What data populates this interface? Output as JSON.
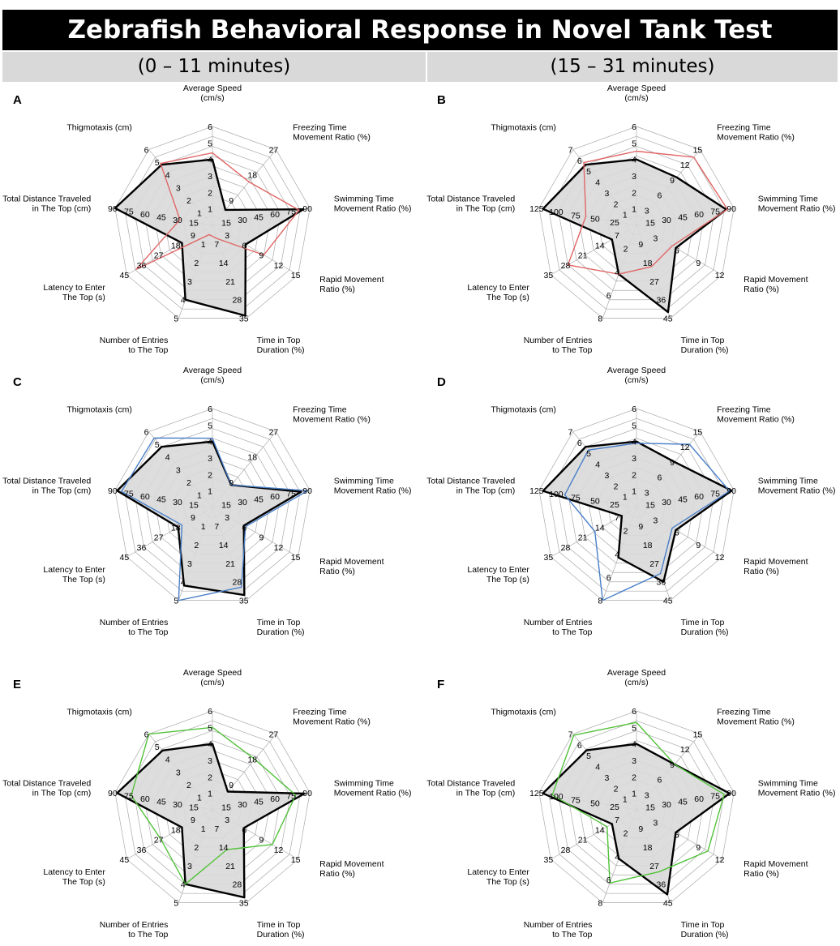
{
  "title": "Zebrafish Behavioral Response in Novel Tank Test",
  "columns": [
    "(0 – 11 minutes)",
    "(15 – 31 minutes)"
  ],
  "colors": {
    "reference": "#000000",
    "fill": "#d9d9d9",
    "panel_a": "#e06666",
    "panel_c": "#4a7fc8",
    "panel_e": "#52c23a",
    "grid": "#aaaaaa"
  },
  "axes": [
    {
      "label": "Average Speed\n(cm/s)"
    },
    {
      "label": "Freezing Time\nMovement Ratio (%)"
    },
    {
      "label": "Swimming Time\nMovement Ratio (%)"
    },
    {
      "label": "Rapid Movement\nRatio (%)"
    },
    {
      "label": "Time in Top\nDuration (%)"
    },
    {
      "label": "Number of Entries\nto The Top"
    },
    {
      "label": "Latency to Enter\nThe Top (s)"
    },
    {
      "label": "Total Distance Traveled\nin The Top (cm)"
    },
    {
      "label": "Thigmotaxis (cm)"
    }
  ],
  "chart_data": [
    {
      "type": "radar",
      "panel": "A",
      "column": 0,
      "axis_max": [
        6,
        27,
        90,
        15,
        35,
        5,
        45,
        90,
        6
      ],
      "ticks": [
        [
          "1",
          "2",
          "3",
          "4",
          "5",
          "6"
        ],
        [
          "9",
          "18",
          "27"
        ],
        [
          "15",
          "30",
          "45",
          "60",
          "75",
          "90"
        ],
        [
          "3",
          "6",
          "9",
          "12",
          "15"
        ],
        [
          "7",
          "14",
          "21",
          "28",
          "35"
        ],
        [
          "1",
          "2",
          "3",
          "4",
          "5"
        ],
        [
          "9",
          "18",
          "27",
          "36",
          "45"
        ],
        [
          "15",
          "30",
          "45",
          "60",
          "75",
          "90"
        ],
        [
          "1",
          "2",
          "3",
          "4",
          "5",
          "6"
        ]
      ],
      "series": [
        {
          "role": "reference",
          "values": [
            4,
            5.5,
            84,
            5.8,
            34,
            4,
            16,
            90,
            4.8
          ]
        },
        {
          "role": "panel_a",
          "values": [
            4.4,
            15.5,
            80,
            9,
            5,
            0.5,
            40,
            30,
            4.9
          ]
        }
      ]
    },
    {
      "type": "radar",
      "panel": "B",
      "column": 1,
      "axis_max": [
        6,
        15,
        90,
        12,
        45,
        8,
        35,
        125,
        7
      ],
      "ticks": [
        [
          "1",
          "2",
          "3",
          "4",
          "5",
          "6"
        ],
        [
          "3",
          "6",
          "9",
          "12",
          "15"
        ],
        [
          "15",
          "30",
          "45",
          "60",
          "75",
          "90"
        ],
        [
          "3",
          "6",
          "9",
          "12"
        ],
        [
          "9",
          "18",
          "27",
          "36",
          "45"
        ],
        [
          "2",
          "4",
          "6",
          "8"
        ],
        [
          "7",
          "14",
          "21",
          "28",
          "35"
        ],
        [
          "25",
          "50",
          "75",
          "100",
          "125"
        ],
        [
          "1",
          "2",
          "3",
          "4",
          "5",
          "6",
          "7"
        ]
      ],
      "series": [
        {
          "role": "reference",
          "values": [
            4,
            9.5,
            83,
            5.5,
            42,
            4.2,
            10,
            120,
            5.6
          ]
        },
        {
          "role": "panel_a",
          "values": [
            4.5,
            13.5,
            84,
            5,
            20,
            4.2,
            28,
            65,
            5.8
          ]
        }
      ]
    },
    {
      "type": "radar",
      "panel": "C",
      "column": 0,
      "axis_max": [
        6,
        27,
        90,
        15,
        35,
        5,
        45,
        90,
        6
      ],
      "ticks": [
        [
          "1",
          "2",
          "3",
          "4",
          "5",
          "6"
        ],
        [
          "9",
          "18",
          "27"
        ],
        [
          "15",
          "30",
          "45",
          "60",
          "75",
          "90"
        ],
        [
          "3",
          "6",
          "9",
          "12",
          "15"
        ],
        [
          "7",
          "14",
          "21",
          "28",
          "35"
        ],
        [
          "1",
          "2",
          "3",
          "4",
          "5"
        ],
        [
          "9",
          "18",
          "27",
          "36",
          "45"
        ],
        [
          "15",
          "30",
          "45",
          "60",
          "75",
          "90"
        ],
        [
          "1",
          "2",
          "3",
          "4",
          "5",
          "6"
        ]
      ],
      "series": [
        {
          "role": "reference",
          "values": [
            4,
            8,
            82,
            5.5,
            33,
            4.2,
            18,
            88,
            4.8
          ]
        },
        {
          "role": "panel_c",
          "values": [
            4.2,
            8,
            88,
            5.8,
            30,
            5,
            16,
            84,
            5.5
          ]
        }
      ]
    },
    {
      "type": "radar",
      "panel": "D",
      "column": 1,
      "axis_max": [
        6,
        15,
        90,
        12,
        45,
        8,
        35,
        125,
        7
      ],
      "ticks": [
        [
          "1",
          "2",
          "3",
          "4",
          "5",
          "6"
        ],
        [
          "3",
          "6",
          "9",
          "12",
          "15"
        ],
        [
          "15",
          "30",
          "45",
          "60",
          "75",
          "90"
        ],
        [
          "3",
          "6",
          "9",
          "12"
        ],
        [
          "9",
          "18",
          "27",
          "36",
          "45"
        ],
        [
          "2",
          "4",
          "6",
          "8"
        ],
        [
          "7",
          "14",
          "21",
          "28",
          "35"
        ],
        [
          "25",
          "50",
          "75",
          "100",
          "125"
        ],
        [
          "1",
          "2",
          "3",
          "4",
          "5",
          "6",
          "7"
        ]
      ],
      "series": [
        {
          "role": "reference",
          "values": [
            4,
            9,
            88,
            5.5,
            36,
            4.3,
            6,
            120,
            5.6
          ]
        },
        {
          "role": "panel_c",
          "values": [
            3.9,
            12.5,
            86,
            5,
            32,
            8,
            17,
            92,
            5.3
          ]
        }
      ]
    },
    {
      "type": "radar",
      "panel": "E",
      "column": 0,
      "axis_max": [
        6,
        27,
        90,
        15,
        35,
        5,
        45,
        90,
        6
      ],
      "ticks": [
        [
          "1",
          "2",
          "3",
          "4",
          "5",
          "6"
        ],
        [
          "9",
          "18",
          "27"
        ],
        [
          "15",
          "30",
          "45",
          "60",
          "75",
          "90"
        ],
        [
          "3",
          "6",
          "9",
          "12",
          "15"
        ],
        [
          "7",
          "14",
          "21",
          "28",
          "35"
        ],
        [
          "1",
          "2",
          "3",
          "4",
          "5"
        ],
        [
          "9",
          "18",
          "27",
          "36",
          "45"
        ],
        [
          "15",
          "30",
          "45",
          "60",
          "75",
          "90"
        ],
        [
          "1",
          "2",
          "3",
          "4",
          "5",
          "6"
        ]
      ],
      "series": [
        {
          "role": "reference",
          "values": [
            4,
            6.5,
            85,
            5.5,
            33,
            4,
            16,
            88,
            4.7
          ]
        },
        {
          "role": "panel_e",
          "values": [
            5,
            18,
            77,
            10.5,
            15,
            4,
            27,
            75,
            6
          ]
        }
      ]
    },
    {
      "type": "radar",
      "panel": "F",
      "column": 1,
      "axis_max": [
        6,
        15,
        90,
        12,
        45,
        8,
        35,
        125,
        7
      ],
      "ticks": [
        [
          "1",
          "2",
          "3",
          "4",
          "5",
          "6"
        ],
        [
          "3",
          "6",
          "9",
          "12",
          "15"
        ],
        [
          "15",
          "30",
          "45",
          "60",
          "75",
          "90"
        ],
        [
          "3",
          "6",
          "9",
          "12"
        ],
        [
          "9",
          "18",
          "27",
          "36",
          "45"
        ],
        [
          "2",
          "4",
          "6",
          "8"
        ],
        [
          "7",
          "14",
          "21",
          "28",
          "35"
        ],
        [
          "25",
          "50",
          "75",
          "100",
          "125"
        ],
        [
          "1",
          "2",
          "3",
          "4",
          "5",
          "6",
          "7"
        ]
      ],
      "series": [
        {
          "role": "reference",
          "values": [
            4,
            9,
            86,
            5.5,
            41,
            4.2,
            10,
            120,
            5.5
          ]
        },
        {
          "role": "panel_e",
          "values": [
            5.3,
            9,
            81,
            10,
            30,
            6.3,
            12,
            108,
            6.9
          ]
        }
      ]
    }
  ]
}
